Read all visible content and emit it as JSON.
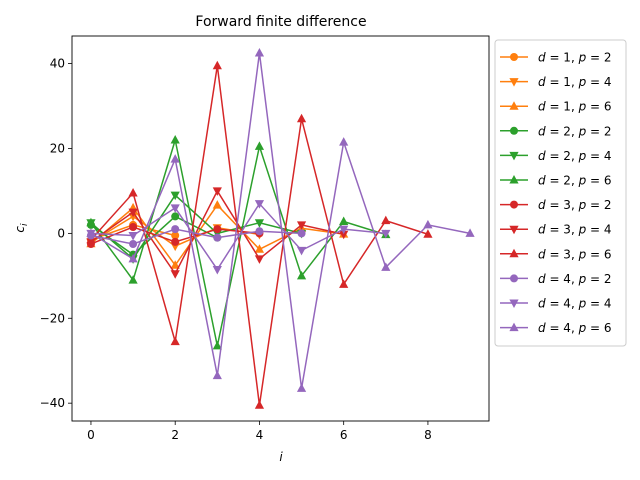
{
  "chart_data": {
    "type": "line",
    "title": "Forward finite difference",
    "xlabel": "i",
    "ylabel": "c_i",
    "xlim": [
      -0.45,
      9.45
    ],
    "ylim": [
      -44.2,
      46.5
    ],
    "x_ticks": [
      0,
      2,
      4,
      6,
      8
    ],
    "y_ticks": [
      -40,
      -20,
      0,
      20,
      40
    ],
    "x_tick_labels": [
      "0",
      "2",
      "4",
      "6",
      "8"
    ],
    "y_tick_labels": [
      "−40",
      "−20",
      "0",
      "20",
      "40"
    ],
    "grid": false,
    "legend_position": "outside-right",
    "series": [
      {
        "name": "d = 1, p = 2",
        "label_d": "d = 1, ",
        "label_p": "p = 2",
        "color": "#ff7f0e",
        "marker": "circle",
        "x": [
          0,
          1,
          2
        ],
        "values": [
          -1.5,
          2,
          -0.5
        ]
      },
      {
        "name": "d = 1, p = 4",
        "label_d": "d = 1, ",
        "label_p": "p = 4",
        "color": "#ff7f0e",
        "marker": "triangle-down",
        "x": [
          0,
          1,
          2,
          3,
          4
        ],
        "values": [
          -2.083,
          4,
          -3,
          1.333,
          -0.25
        ]
      },
      {
        "name": "d = 1, p = 6",
        "label_d": "d = 1, ",
        "label_p": "p = 6",
        "color": "#ff7f0e",
        "marker": "triangle-up",
        "x": [
          0,
          1,
          2,
          3,
          4,
          5,
          6
        ],
        "values": [
          -2.45,
          6,
          -7.5,
          6.667,
          -3.75,
          1.2,
          -0.167
        ]
      },
      {
        "name": "d = 2, p = 2",
        "label_d": "d = 2, ",
        "label_p": "p = 2",
        "color": "#2ca02c",
        "marker": "circle",
        "x": [
          0,
          1,
          2,
          3
        ],
        "values": [
          2,
          -5,
          4,
          -1
        ]
      },
      {
        "name": "d = 2, p = 4",
        "label_d": "d = 2, ",
        "label_p": "p = 4",
        "color": "#2ca02c",
        "marker": "triangle-down",
        "x": [
          0,
          1,
          2,
          3,
          4,
          5
        ],
        "values": [
          2.5,
          -6,
          9,
          0,
          2.5,
          0
        ]
      },
      {
        "name": "d = 2, p = 6",
        "label_d": "d = 2, ",
        "label_p": "p = 6",
        "color": "#2ca02c",
        "marker": "triangle-up",
        "x": [
          0,
          1,
          2,
          3,
          4,
          5,
          6,
          7
        ],
        "values": [
          2.5,
          -11,
          22,
          -26.5,
          20.5,
          -10,
          2.8,
          -0.3
        ]
      },
      {
        "name": "d = 3, p = 2",
        "label_d": "d = 3, ",
        "label_p": "p = 2",
        "color": "#d62728",
        "marker": "circle",
        "x": [
          0,
          1,
          2,
          3,
          4
        ],
        "values": [
          -2.5,
          1.5,
          -2,
          1,
          0
        ]
      },
      {
        "name": "d = 3, p = 4",
        "label_d": "d = 3, ",
        "label_p": "p = 4",
        "color": "#d62728",
        "marker": "triangle-down",
        "x": [
          0,
          1,
          2,
          3,
          4,
          5,
          6
        ],
        "values": [
          -2,
          5,
          -9.5,
          10,
          -6,
          2,
          -0.2
        ]
      },
      {
        "name": "d = 3, p = 6",
        "label_d": "d = 3, ",
        "label_p": "p = 6",
        "color": "#d62728",
        "marker": "triangle-up",
        "x": [
          0,
          1,
          2,
          3,
          4,
          5,
          6,
          7,
          8
        ],
        "values": [
          -1.5,
          9.5,
          -25.5,
          39.5,
          -40.5,
          27,
          -12,
          3,
          -0.2
        ]
      },
      {
        "name": "d = 4, p = 2",
        "label_d": "d = 4, ",
        "label_p": "p = 2",
        "color": "#9467bd",
        "marker": "circle",
        "x": [
          0,
          1,
          2,
          3,
          4,
          5
        ],
        "values": [
          -0.5,
          -2.5,
          1,
          -1,
          0.5,
          0
        ]
      },
      {
        "name": "d = 4, p = 4",
        "label_d": "d = 4, ",
        "label_p": "p = 4",
        "color": "#9467bd",
        "marker": "triangle-down",
        "x": [
          0,
          1,
          2,
          3,
          4,
          5,
          6,
          7
        ],
        "values": [
          0,
          -0.5,
          6,
          -8.5,
          7,
          -4,
          1,
          0
        ]
      },
      {
        "name": "d = 4, p = 6",
        "label_d": "d = 4, ",
        "label_p": "p = 6",
        "color": "#9467bd",
        "marker": "triangle-up",
        "x": [
          0,
          1,
          2,
          3,
          4,
          5,
          6,
          7,
          8,
          9
        ],
        "values": [
          0,
          -6,
          17.5,
          -33.5,
          42.5,
          -36.5,
          21.5,
          -8,
          2,
          0
        ]
      }
    ]
  }
}
